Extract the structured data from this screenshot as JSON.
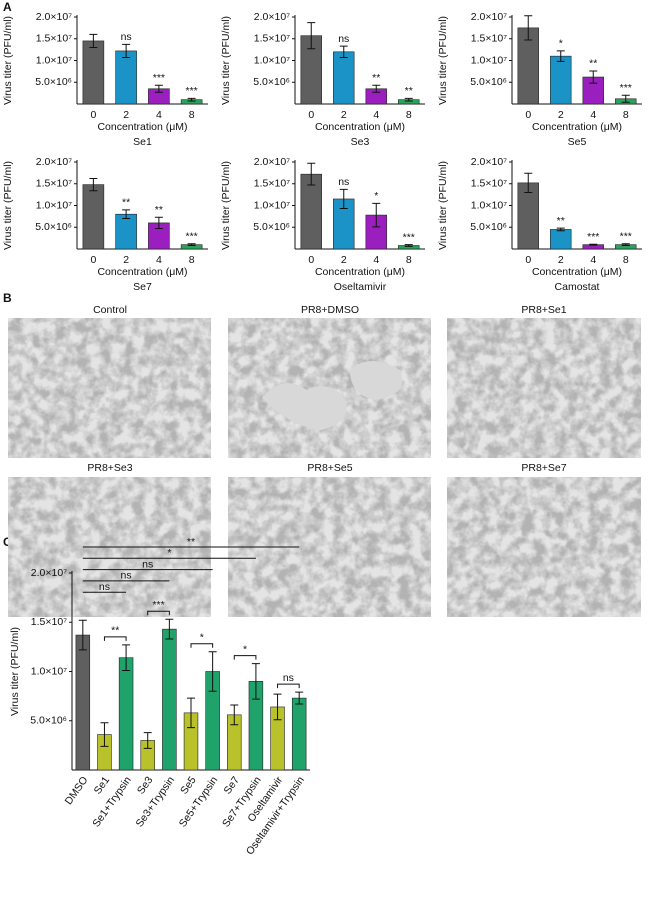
{
  "panel_labels": [
    "A",
    "B",
    "C"
  ],
  "images": [
    "Control",
    "PR8+DMSO",
    "PR8+Se1",
    "PR8+Se3",
    "PR8+Se5",
    "PR8+Se7"
  ],
  "chart_data": [
    {
      "type": "bar",
      "title": "Se1",
      "x_label": "Concentration (μM)",
      "y_label": "Virus titer (PFU/ml)",
      "categories": [
        "0",
        "2",
        "4",
        "8"
      ],
      "values": [
        14500000,
        12200000,
        3500000,
        1000000
      ],
      "errors": [
        1500000,
        1500000,
        800000,
        300000
      ],
      "colors": [
        "#5f5f5f",
        "#1b93c6",
        "#9b1fbf",
        "#27a35a"
      ],
      "annotations": [
        null,
        "ns",
        "***",
        "***"
      ],
      "ylim": [
        0,
        20000000
      ],
      "yticks": [
        {
          "value": 5000000,
          "label": "5.0×10⁶"
        },
        {
          "value": 10000000,
          "label": "1.0×10⁷"
        },
        {
          "value": 15000000,
          "label": "1.5×10⁷"
        },
        {
          "value": 20000000,
          "label": "2.0×10⁷"
        }
      ]
    },
    {
      "type": "bar",
      "title": "Se3",
      "x_label": "Concentration (μM)",
      "y_label": "Virus titer (PFU/ml)",
      "categories": [
        "0",
        "2",
        "4",
        "8"
      ],
      "values": [
        15700000,
        12000000,
        3500000,
        1000000
      ],
      "errors": [
        3000000,
        1300000,
        800000,
        300000
      ],
      "colors": [
        "#5f5f5f",
        "#1b93c6",
        "#9b1fbf",
        "#27a35a"
      ],
      "annotations": [
        null,
        "ns",
        "**",
        "**"
      ],
      "ylim": [
        0,
        20000000
      ],
      "yticks": [
        {
          "value": 5000000,
          "label": "5.0×10⁶"
        },
        {
          "value": 10000000,
          "label": "1.0×10⁷"
        },
        {
          "value": 15000000,
          "label": "1.5×10⁷"
        },
        {
          "value": 20000000,
          "label": "2.0×10⁷"
        }
      ]
    },
    {
      "type": "bar",
      "title": "Se5",
      "x_label": "Concentration (μM)",
      "y_label": "Virus titer (PFU/ml)",
      "categories": [
        "0",
        "2",
        "4",
        "8"
      ],
      "values": [
        17500000,
        11000000,
        6200000,
        1200000
      ],
      "errors": [
        2800000,
        1200000,
        1400000,
        800000
      ],
      "colors": [
        "#5f5f5f",
        "#1b93c6",
        "#9b1fbf",
        "#27a35a"
      ],
      "annotations": [
        null,
        "*",
        "**",
        "***"
      ],
      "ylim": [
        0,
        20000000
      ],
      "yticks": [
        {
          "value": 5000000,
          "label": "5.0×10⁶"
        },
        {
          "value": 10000000,
          "label": "1.0×10⁷"
        },
        {
          "value": 15000000,
          "label": "1.5×10⁷"
        },
        {
          "value": 20000000,
          "label": "2.0×10⁷"
        }
      ]
    },
    {
      "type": "bar",
      "title": "Se7",
      "x_label": "Concentration (μM)",
      "y_label": "Virus titer (PFU/ml)",
      "categories": [
        "0",
        "2",
        "4",
        "8"
      ],
      "values": [
        14800000,
        8000000,
        6000000,
        1000000
      ],
      "errors": [
        1400000,
        1000000,
        1300000,
        200000
      ],
      "colors": [
        "#5f5f5f",
        "#1b93c6",
        "#9b1fbf",
        "#27a35a"
      ],
      "annotations": [
        null,
        "**",
        "**",
        "***"
      ],
      "ylim": [
        0,
        20000000
      ],
      "yticks": [
        {
          "value": 5000000,
          "label": "5.0×10⁶"
        },
        {
          "value": 10000000,
          "label": "1.0×10⁷"
        },
        {
          "value": 15000000,
          "label": "1.5×10⁷"
        },
        {
          "value": 20000000,
          "label": "2.0×10⁷"
        }
      ]
    },
    {
      "type": "bar",
      "title": "Oseltamivir",
      "x_label": "Concentration (μM)",
      "y_label": "Virus titer (PFU/ml)",
      "categories": [
        "0",
        "2",
        "4",
        "8"
      ],
      "values": [
        17200000,
        11500000,
        7800000,
        800000
      ],
      "errors": [
        2500000,
        2200000,
        2700000,
        200000
      ],
      "colors": [
        "#5f5f5f",
        "#1b93c6",
        "#9b1fbf",
        "#27a35a"
      ],
      "annotations": [
        null,
        "ns",
        "*",
        "***"
      ],
      "ylim": [
        0,
        20000000
      ],
      "yticks": [
        {
          "value": 5000000,
          "label": "5.0×10⁶"
        },
        {
          "value": 10000000,
          "label": "1.0×10⁷"
        },
        {
          "value": 15000000,
          "label": "1.5×10⁷"
        },
        {
          "value": 20000000,
          "label": "2.0×10⁷"
        }
      ]
    },
    {
      "type": "bar",
      "title": "Camostat",
      "x_label": "Concentration (μM)",
      "y_label": "Virus titer (PFU/ml)",
      "categories": [
        "0",
        "2",
        "4",
        "8"
      ],
      "values": [
        15200000,
        4500000,
        1000000,
        1000000
      ],
      "errors": [
        2200000,
        300000,
        100000,
        200000
      ],
      "colors": [
        "#5f5f5f",
        "#1b93c6",
        "#9b1fbf",
        "#27a35a"
      ],
      "annotations": [
        null,
        "**",
        "***",
        "***"
      ],
      "ylim": [
        0,
        20000000
      ],
      "yticks": [
        {
          "value": 5000000,
          "label": "5.0×10⁶"
        },
        {
          "value": 10000000,
          "label": "1.0×10⁷"
        },
        {
          "value": 15000000,
          "label": "1.5×10⁷"
        },
        {
          "value": 20000000,
          "label": "2.0×10⁷"
        }
      ]
    },
    {
      "type": "bar",
      "y_label": "Virus titer (PFU/ml)",
      "categories": [
        "DMSO",
        "Se1",
        "Se1+Trypsin",
        "Se3",
        "Se3+Trypsin",
        "Se5",
        "Se5+Trypsin",
        "Se7",
        "Se7+Trypsin",
        "Oseltamivir",
        "Oseltamivir+Trypsin"
      ],
      "values": [
        13700000,
        3600000,
        11400000,
        3000000,
        14300000,
        5800000,
        10000000,
        5600000,
        9000000,
        6400000,
        7300000
      ],
      "errors": [
        1500000,
        1200000,
        1300000,
        800000,
        1000000,
        1500000,
        2000000,
        1000000,
        1800000,
        1300000,
        600000
      ],
      "colors": [
        "#5f5f5f",
        "#b9c22b",
        "#1fa36b",
        "#b9c22b",
        "#1fa36b",
        "#b9c22b",
        "#1fa36b",
        "#b9c22b",
        "#1fa36b",
        "#b9c22b",
        "#1fa36b"
      ],
      "comparisons": [
        {
          "pair": [
            0,
            10
          ],
          "label": "**"
        },
        {
          "pair": [
            0,
            8
          ],
          "label": "*"
        },
        {
          "pair": [
            0,
            6
          ],
          "label": "ns"
        },
        {
          "pair": [
            0,
            4
          ],
          "label": "ns"
        },
        {
          "pair": [
            0,
            2
          ],
          "label": "ns"
        },
        {
          "pair": [
            1,
            2
          ],
          "label": "**"
        },
        {
          "pair": [
            3,
            4
          ],
          "label": "***"
        },
        {
          "pair": [
            5,
            6
          ],
          "label": "*"
        },
        {
          "pair": [
            7,
            8
          ],
          "label": "*"
        },
        {
          "pair": [
            9,
            10
          ],
          "label": "ns"
        }
      ],
      "ylim": [
        0,
        20000000
      ],
      "yticks": [
        {
          "value": 5000000,
          "label": "5.0×10⁶"
        },
        {
          "value": 10000000,
          "label": "1.0×10⁷"
        },
        {
          "value": 15000000,
          "label": "1.5×10⁷"
        },
        {
          "value": 20000000,
          "label": "2.0×10⁷"
        }
      ]
    }
  ]
}
